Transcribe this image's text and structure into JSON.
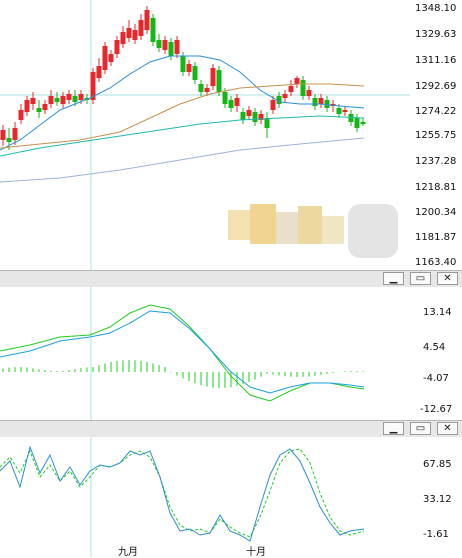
{
  "main": {
    "y_axis_labels": [
      "1348.10",
      "1329.63",
      "1311.16",
      "1292.69",
      "1274.22",
      "1255.75",
      "1237.28",
      "1218.81",
      "1200.34",
      "1181.87",
      "1163.40"
    ],
    "colors": {
      "up": "#e8262c",
      "down": "#14b814",
      "ma_short": "#2a90d8",
      "ma_mid": "#20b8b0",
      "ma_long": "#c89050",
      "ma_xlong": "#9ab4d8",
      "crosshair": "#a8e0e0"
    }
  },
  "pane_buttons": [
    {
      "icon": "minimize-icon",
      "glyph": "▁"
    },
    {
      "icon": "restore-icon",
      "glyph": "▭"
    },
    {
      "icon": "close-icon",
      "glyph": "✕"
    }
  ],
  "macd": {
    "y_axis_labels": [
      "13.14",
      "4.54",
      "-4.07",
      "-12.67"
    ],
    "colors": {
      "dif": "#1aa0e0",
      "dea": "#22cc22",
      "hist": "#22cc22"
    }
  },
  "kdj": {
    "y_axis_labels": [
      "67.85",
      "33.12",
      "-1.61"
    ],
    "colors": {
      "k": "#2a90c8",
      "d": "#22cc22"
    }
  },
  "x_axis_labels": [
    "九月",
    "十月"
  ]
}
